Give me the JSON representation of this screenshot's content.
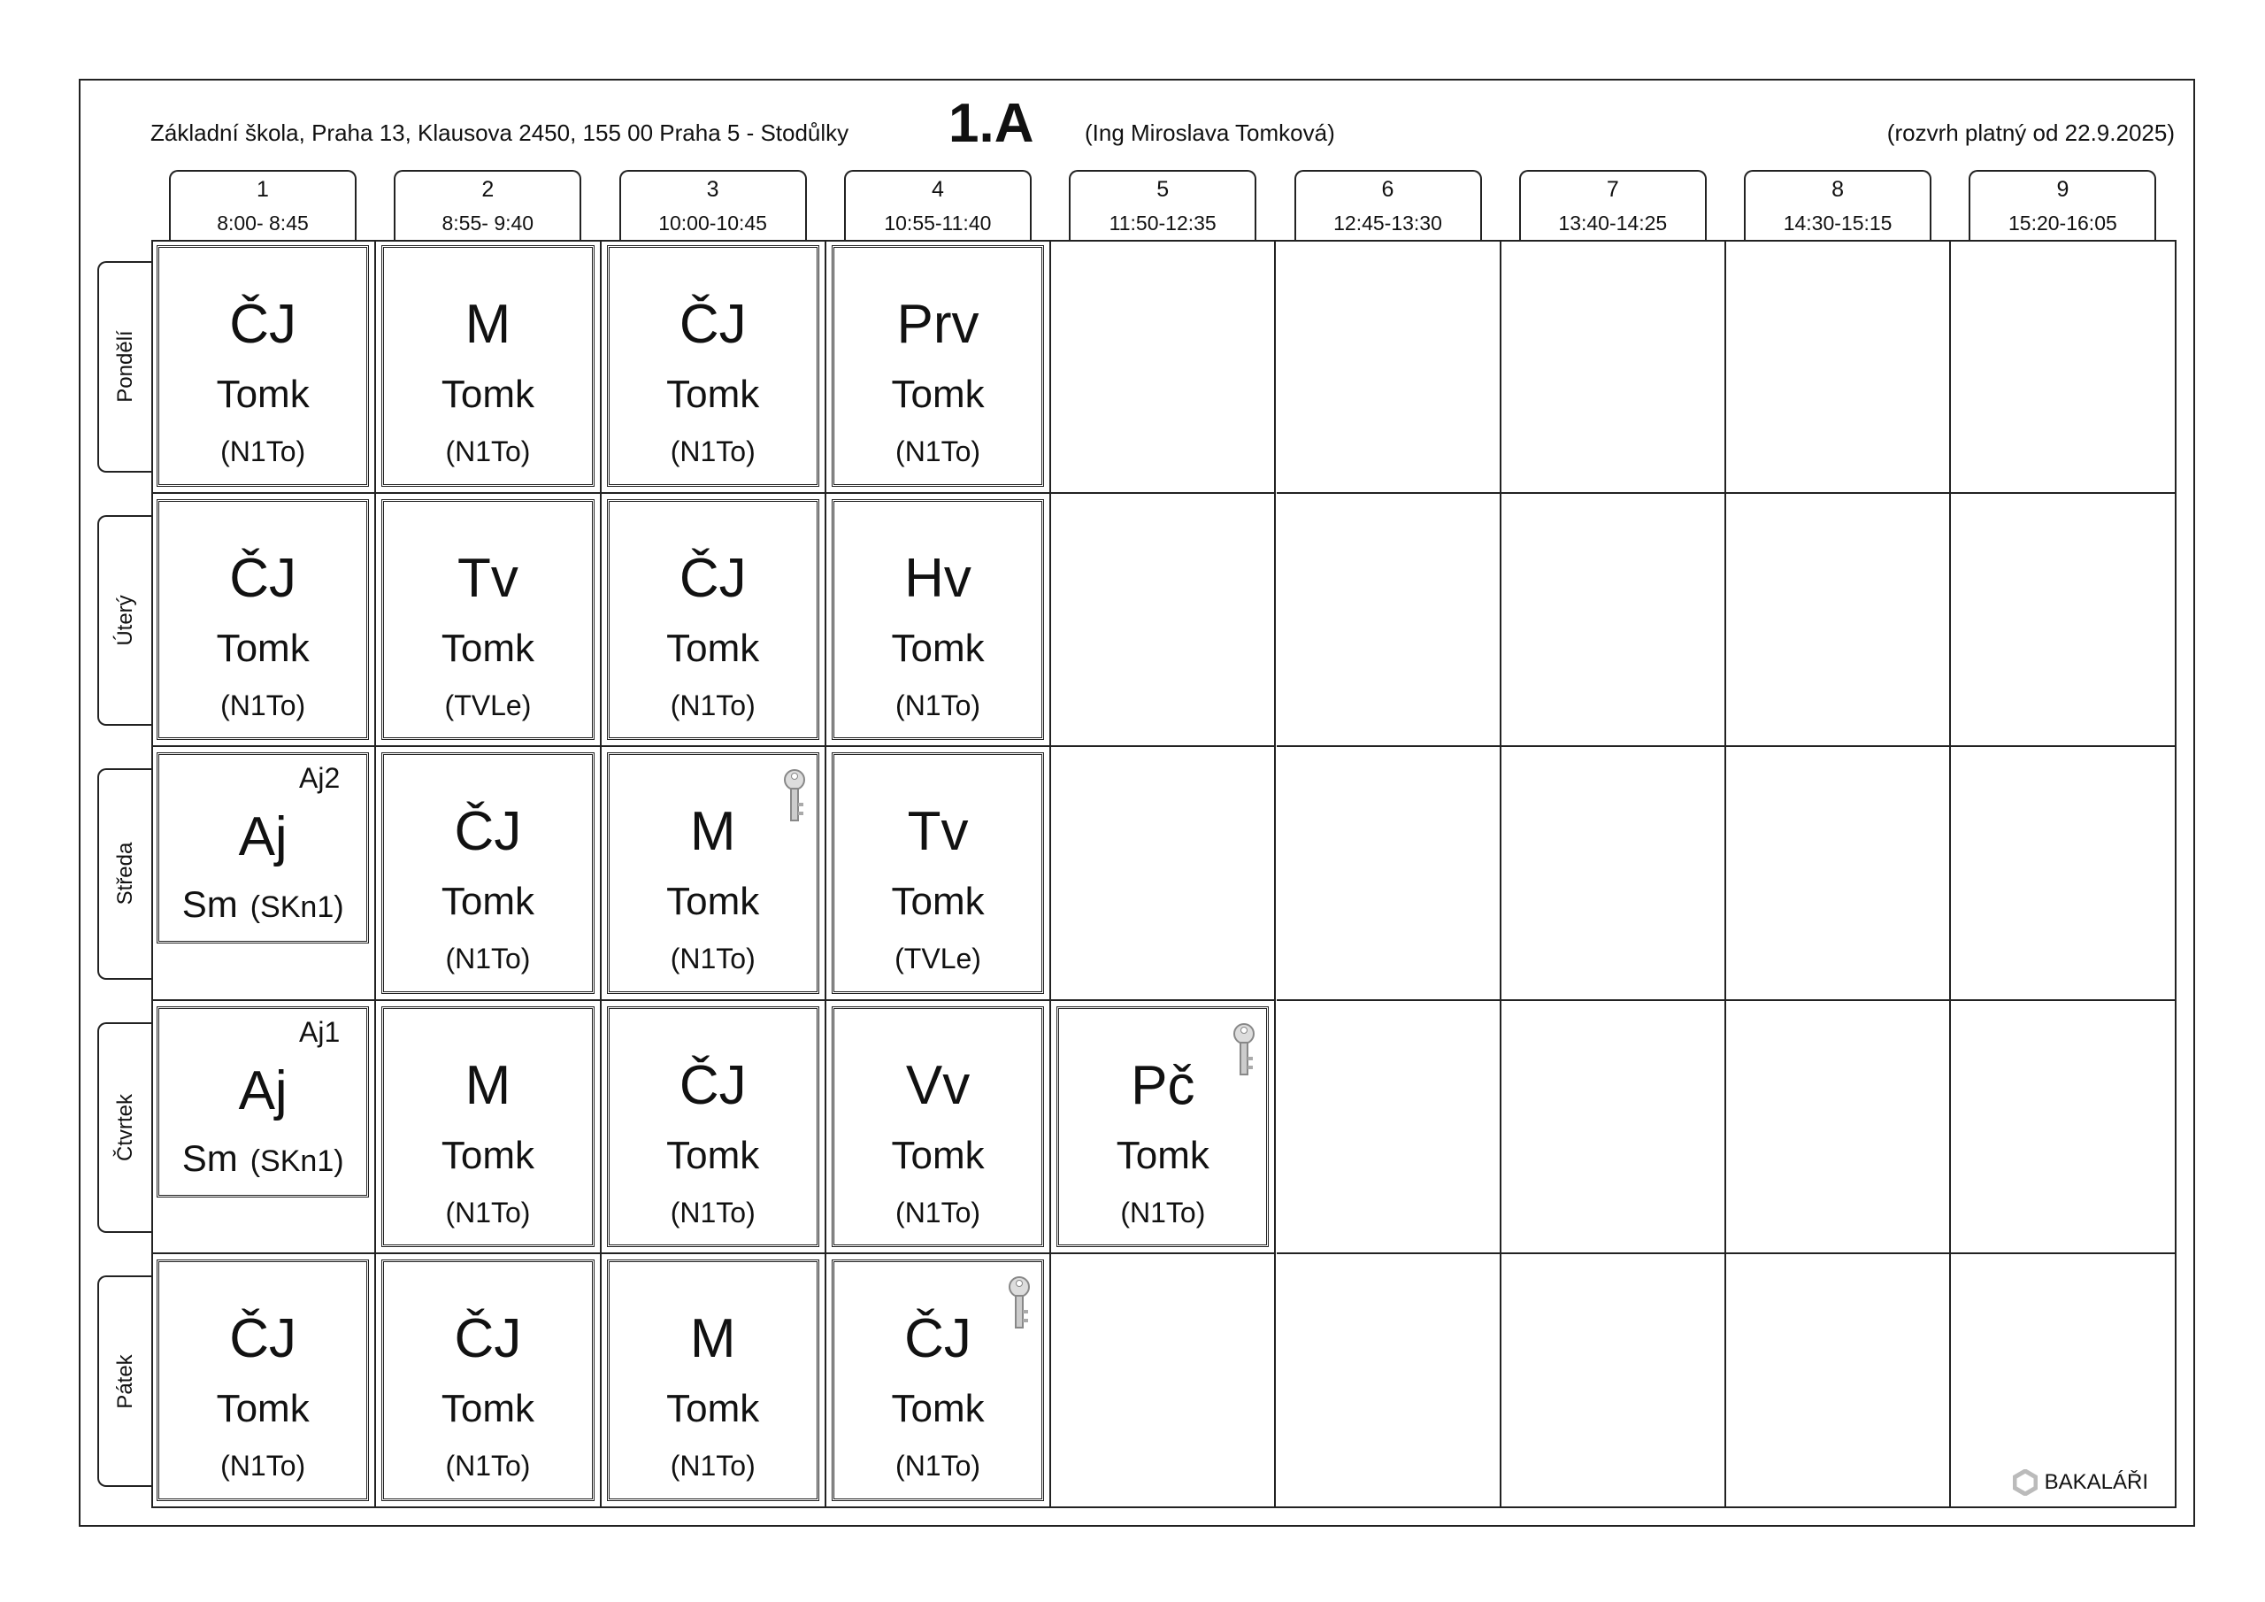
{
  "header": {
    "school": "Základní škola, Praha 13, Klausova 2450, 155 00 Praha 5 - Stodůlky",
    "class": "1.A",
    "teacher": "(Ing Miroslava Tomková)",
    "valid": "(rozvrh platný od 22.9.2025)"
  },
  "periods": [
    {
      "n": "1",
      "time": "8:00- 8:45"
    },
    {
      "n": "2",
      "time": "8:55- 9:40"
    },
    {
      "n": "3",
      "time": "10:00-10:45"
    },
    {
      "n": "4",
      "time": "10:55-11:40"
    },
    {
      "n": "5",
      "time": "11:50-12:35"
    },
    {
      "n": "6",
      "time": "12:45-13:30"
    },
    {
      "n": "7",
      "time": "13:40-14:25"
    },
    {
      "n": "8",
      "time": "14:30-15:15"
    },
    {
      "n": "9",
      "time": "15:20-16:05"
    }
  ],
  "days": [
    {
      "name": "Pondělí",
      "lessons": [
        {
          "subject": "ČJ",
          "teacher": "Tomk",
          "room": "(N1To)"
        },
        {
          "subject": "M",
          "teacher": "Tomk",
          "room": "(N1To)"
        },
        {
          "subject": "ČJ",
          "teacher": "Tomk",
          "room": "(N1To)"
        },
        {
          "subject": "Prv",
          "teacher": "Tomk",
          "room": "(N1To)"
        }
      ]
    },
    {
      "name": "Úterý",
      "lessons": [
        {
          "subject": "ČJ",
          "teacher": "Tomk",
          "room": "(N1To)"
        },
        {
          "subject": "Tv",
          "teacher": "Tomk",
          "room": "(TVLe)"
        },
        {
          "subject": "ČJ",
          "teacher": "Tomk",
          "room": "(N1To)"
        },
        {
          "subject": "Hv",
          "teacher": "Tomk",
          "room": "(N1To)"
        }
      ]
    },
    {
      "name": "Středa",
      "lessons": [
        {
          "subject": "Aj",
          "teacher": "Sm",
          "room": "(SKn1)",
          "group": "Aj2"
        },
        {
          "subject": "ČJ",
          "teacher": "Tomk",
          "room": "(N1To)"
        },
        {
          "subject": "M",
          "teacher": "Tomk",
          "room": "(N1To)",
          "icon": "key-icon"
        },
        {
          "subject": "Tv",
          "teacher": "Tomk",
          "room": "(TVLe)"
        }
      ]
    },
    {
      "name": "Čtvrtek",
      "lessons": [
        {
          "subject": "Aj",
          "teacher": "Sm",
          "room": "(SKn1)",
          "group": "Aj1"
        },
        {
          "subject": "M",
          "teacher": "Tomk",
          "room": "(N1To)"
        },
        {
          "subject": "ČJ",
          "teacher": "Tomk",
          "room": "(N1To)"
        },
        {
          "subject": "Vv",
          "teacher": "Tomk",
          "room": "(N1To)"
        },
        {
          "subject": "Pč",
          "teacher": "Tomk",
          "room": "(N1To)",
          "icon": "key-icon"
        }
      ]
    },
    {
      "name": "Pátek",
      "lessons": [
        {
          "subject": "ČJ",
          "teacher": "Tomk",
          "room": "(N1To)"
        },
        {
          "subject": "ČJ",
          "teacher": "Tomk",
          "room": "(N1To)"
        },
        {
          "subject": "M",
          "teacher": "Tomk",
          "room": "(N1To)"
        },
        {
          "subject": "ČJ",
          "teacher": "Tomk",
          "room": "(N1To)",
          "icon": "key-icon"
        }
      ]
    }
  ],
  "logo": "BAKALÁŘI"
}
